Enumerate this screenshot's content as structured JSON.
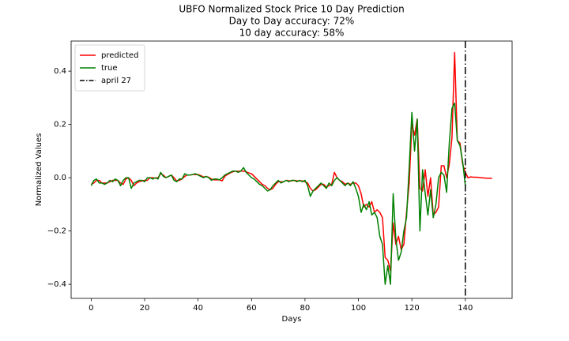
{
  "chart_data": {
    "type": "line",
    "title": "UBFO Normalized Stock Price 10 Day Prediction",
    "subtitle": [
      "Day to Day accuracy: 72%",
      "10 day accuracy: 58%"
    ],
    "xlabel": "Days",
    "ylabel": "Normalized Values",
    "xlim": [
      -7.5,
      157.5
    ],
    "ylim": [
      -0.453,
      0.513
    ],
    "xticks": [
      0,
      20,
      40,
      60,
      80,
      100,
      120,
      140
    ],
    "yticks": [
      {
        "value": -0.4,
        "label": "−0.4"
      },
      {
        "value": -0.2,
        "label": "−0.2"
      },
      {
        "value": 0,
        "label": "0.0"
      },
      0.2,
      0.4
    ],
    "grid": false,
    "legend": "upper left",
    "x": [
      0,
      1,
      2,
      3,
      4,
      5,
      6,
      7,
      8,
      9,
      10,
      11,
      12,
      13,
      14,
      15,
      16,
      17,
      18,
      19,
      20,
      21,
      22,
      23,
      24,
      25,
      26,
      27,
      28,
      29,
      30,
      31,
      32,
      33,
      34,
      35,
      36,
      37,
      38,
      39,
      40,
      41,
      42,
      43,
      44,
      45,
      46,
      47,
      48,
      49,
      50,
      51,
      52,
      53,
      54,
      55,
      56,
      57,
      58,
      59,
      60,
      61,
      62,
      63,
      64,
      65,
      66,
      67,
      68,
      69,
      70,
      71,
      72,
      73,
      74,
      75,
      76,
      77,
      78,
      79,
      80,
      81,
      82,
      83,
      84,
      85,
      86,
      87,
      88,
      89,
      90,
      91,
      92,
      93,
      94,
      95,
      96,
      97,
      98,
      99,
      100,
      101,
      102,
      103,
      104,
      105,
      106,
      107,
      108,
      109,
      110,
      111,
      112,
      113,
      114,
      115,
      116,
      117,
      118,
      119,
      120,
      121,
      122,
      123,
      124,
      125,
      126,
      127,
      128,
      129,
      130,
      131,
      132,
      133,
      134,
      135,
      136,
      137,
      138,
      139,
      140,
      141,
      142,
      143,
      144,
      145,
      146,
      147,
      148,
      149,
      150
    ],
    "series": [
      {
        "name": "predicted",
        "color": "#ff0000",
        "values": [
          -0.025,
          -0.02,
          -0.01,
          -0.01,
          -0.02,
          -0.02,
          -0.02,
          -0.015,
          -0.01,
          -0.01,
          -0.01,
          -0.02,
          -0.025,
          -0.005,
          0.0,
          -0.01,
          -0.03,
          -0.02,
          -0.015,
          -0.012,
          -0.01,
          -0.01,
          0.0,
          0.0,
          -0.002,
          0.0,
          0.015,
          0.01,
          0.0,
          0.005,
          0.01,
          0.0,
          -0.012,
          -0.01,
          -0.005,
          0.005,
          0.01,
          0.01,
          0.012,
          0.012,
          0.012,
          0.008,
          0.003,
          0.004,
          0.002,
          -0.005,
          -0.008,
          -0.008,
          -0.008,
          -0.012,
          0.005,
          0.012,
          0.018,
          0.022,
          0.025,
          0.024,
          0.025,
          0.025,
          0.022,
          0.018,
          0.015,
          0.005,
          -0.005,
          -0.015,
          -0.025,
          -0.03,
          -0.04,
          -0.045,
          -0.04,
          -0.025,
          -0.015,
          -0.015,
          -0.015,
          -0.01,
          -0.012,
          -0.012,
          -0.01,
          -0.012,
          -0.012,
          -0.012,
          -0.015,
          -0.02,
          -0.04,
          -0.05,
          -0.045,
          -0.035,
          -0.025,
          -0.025,
          -0.035,
          -0.03,
          -0.025,
          0.02,
          0.0,
          -0.01,
          -0.015,
          -0.025,
          -0.02,
          -0.025,
          -0.02,
          -0.02,
          -0.03,
          -0.06,
          -0.11,
          -0.1,
          -0.11,
          -0.09,
          -0.13,
          -0.12,
          -0.13,
          -0.15,
          -0.3,
          -0.31,
          -0.35,
          -0.17,
          -0.25,
          -0.22,
          -0.27,
          -0.25,
          -0.13,
          -0.02,
          0.2,
          0.16,
          0.22,
          -0.04,
          -0.05,
          0.03,
          -0.07,
          0.0,
          -0.14,
          -0.13,
          -0.11,
          0.045,
          0.045,
          0.0,
          0.05,
          0.15,
          0.47,
          0.14,
          0.13,
          0.05,
          0.02,
          0.0,
          0.003,
          0.002,
          0.002,
          0.001,
          0.0,
          -0.001,
          -0.002,
          -0.002,
          -0.003
        ]
      },
      {
        "name": "true",
        "color": "#008000",
        "values": [
          -0.03,
          -0.01,
          -0.005,
          -0.02,
          -0.02,
          -0.025,
          -0.02,
          -0.01,
          -0.015,
          -0.005,
          -0.01,
          -0.03,
          -0.01,
          0.0,
          0.0,
          -0.04,
          -0.02,
          -0.015,
          -0.01,
          -0.01,
          -0.015,
          0.0,
          0.0,
          -0.005,
          0.0,
          -0.005,
          0.02,
          0.005,
          0.0,
          0.005,
          0.01,
          -0.01,
          -0.015,
          -0.005,
          -0.005,
          0.015,
          0.01,
          0.01,
          0.012,
          0.015,
          0.01,
          0.005,
          0.0,
          0.005,
          0.0,
          -0.01,
          -0.005,
          -0.005,
          -0.008,
          0.0,
          0.01,
          0.015,
          0.02,
          0.025,
          0.025,
          0.02,
          0.025,
          0.038,
          0.02,
          0.01,
          0.0,
          -0.005,
          -0.015,
          -0.025,
          -0.03,
          -0.04,
          -0.05,
          -0.045,
          -0.03,
          -0.02,
          -0.01,
          -0.02,
          -0.015,
          -0.01,
          -0.015,
          -0.01,
          -0.01,
          -0.015,
          -0.01,
          -0.015,
          -0.01,
          -0.03,
          -0.07,
          -0.05,
          -0.04,
          -0.03,
          -0.02,
          -0.03,
          -0.04,
          -0.02,
          -0.03,
          -0.01,
          0.0,
          -0.01,
          -0.02,
          -0.03,
          -0.02,
          -0.03,
          -0.015,
          -0.04,
          -0.07,
          -0.13,
          -0.1,
          -0.12,
          -0.09,
          -0.14,
          -0.13,
          -0.15,
          -0.22,
          -0.25,
          -0.4,
          -0.33,
          -0.4,
          -0.06,
          -0.23,
          -0.31,
          -0.28,
          -0.2,
          -0.15,
          0.04,
          0.245,
          0.1,
          0.22,
          -0.2,
          0.03,
          -0.06,
          -0.14,
          -0.045,
          -0.15,
          -0.1,
          0.0,
          0.02,
          0.01,
          -0.055,
          0.13,
          0.26,
          0.28,
          0.14,
          0.12,
          0.06,
          -0.03,
          null,
          null,
          null,
          null,
          null,
          null,
          null,
          null,
          null,
          null
        ]
      }
    ],
    "vline": {
      "x": 140,
      "name": "april 27",
      "color": "#000000"
    }
  }
}
